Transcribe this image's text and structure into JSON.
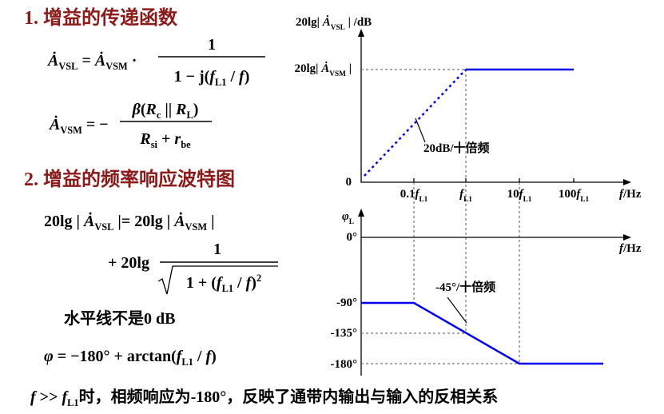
{
  "heading_1": [
    {
      "t": "1.  增益的传递函数"
    }
  ],
  "f1_lhs": [
    {
      "t": "Ȧ",
      "i": true
    },
    {
      "sub": "VSL"
    },
    {
      "t": " = "
    },
    {
      "t": "Ȧ",
      "i": true
    },
    {
      "sub": "VSM"
    },
    {
      "t": " ·"
    }
  ],
  "f1_num": [
    {
      "t": "1"
    }
  ],
  "f1_den": [
    {
      "t": "1 − j("
    },
    {
      "t": "f",
      "i": true
    },
    {
      "sub": "L1"
    },
    {
      "t": " / "
    },
    {
      "t": "f",
      "i": true
    },
    {
      "t": ")"
    }
  ],
  "f2_lhs": [
    {
      "t": "Ȧ",
      "i": true
    },
    {
      "sub": "VSM"
    },
    {
      "t": " = −"
    }
  ],
  "f2_num": [
    {
      "t": "β",
      "i": true
    },
    {
      "t": "("
    },
    {
      "t": "R",
      "i": true
    },
    {
      "sub": "c"
    },
    {
      "t": " || "
    },
    {
      "t": "R",
      "i": true
    },
    {
      "sub": "L"
    },
    {
      "t": ")"
    }
  ],
  "f2_den": [
    {
      "t": "R",
      "i": true
    },
    {
      "sub": "si"
    },
    {
      "t": " + "
    },
    {
      "t": "r",
      "i": true
    },
    {
      "sub": "be"
    }
  ],
  "heading_2": [
    {
      "t": "2.  增益的频率响应波特图"
    }
  ],
  "f3": [
    {
      "t": "20lg | "
    },
    {
      "t": "Ȧ",
      "i": true
    },
    {
      "sub": "VSL"
    },
    {
      "t": " |= 20lg | "
    },
    {
      "t": "Ȧ",
      "i": true
    },
    {
      "sub": "VSM"
    },
    {
      "t": " |"
    }
  ],
  "f4_lhs": [
    {
      "t": "+ 20lg"
    }
  ],
  "f4_num": [
    {
      "t": "1"
    }
  ],
  "f4_den": [
    {
      "t": "1 + ("
    },
    {
      "t": "f",
      "i": true
    },
    {
      "sub": "L1"
    },
    {
      "t": " / "
    },
    {
      "t": "f",
      "i": true
    },
    {
      "t": ")"
    },
    {
      "sup": "2"
    }
  ],
  "note": [
    {
      "t": "水平线不是0 dB"
    }
  ],
  "f5": [
    {
      "t": "φ",
      "i": true
    },
    {
      "t": " = −180° + arctan("
    },
    {
      "t": "f",
      "i": true
    },
    {
      "sub": "L1"
    },
    {
      "t": " / "
    },
    {
      "t": "f",
      "i": true
    },
    {
      "t": ")"
    }
  ],
  "conclusion": [
    {
      "t": "f",
      "i": true
    },
    {
      "t": " >> "
    },
    {
      "t": "f",
      "i": true
    },
    {
      "sub": "L1"
    },
    {
      "t": "时，相频响应为-180°，反映了通带内输出与输入的反相关系"
    }
  ],
  "gain_axis_title": [
    {
      "t": "20lg| "
    },
    {
      "t": "Ȧ",
      "i": true
    },
    {
      "sub": "VSL"
    },
    {
      "t": " | /dB"
    }
  ],
  "gain_level": [
    {
      "t": "20lg| "
    },
    {
      "t": "Ȧ",
      "i": true
    },
    {
      "sub": "VSM"
    },
    {
      "t": " |"
    }
  ],
  "gain_zero": [
    {
      "t": "0"
    }
  ],
  "gain_slope": [
    {
      "t": "20dB/十倍频"
    }
  ],
  "freq_ticks": [
    [
      {
        "t": "0.1"
      },
      {
        "t": "f",
        "i": true
      },
      {
        "sub": "L1"
      }
    ],
    [
      {
        "t": "f",
        "i": true
      },
      {
        "sub": "L1"
      }
    ],
    [
      {
        "t": "10"
      },
      {
        "t": "f",
        "i": true
      },
      {
        "sub": "L1"
      }
    ],
    [
      {
        "t": "100"
      },
      {
        "t": "f",
        "i": true
      },
      {
        "sub": "L1"
      }
    ]
  ],
  "gain_x_title": [
    {
      "t": "f",
      "i": true
    },
    {
      "t": "/Hz"
    }
  ],
  "phase_axis_title": [
    {
      "t": "φ",
      "i": true
    },
    {
      "sub": "L"
    }
  ],
  "phase_ticks": [
    [
      {
        "t": "0°"
      }
    ],
    [
      {
        "t": "-90°"
      }
    ],
    [
      {
        "t": "-135°"
      }
    ],
    [
      {
        "t": "-180°"
      }
    ]
  ],
  "phase_x_title": [
    {
      "t": "f",
      "i": true
    },
    {
      "t": "/Hz"
    }
  ],
  "phase_slope": [
    {
      "t": "-45°/十倍频"
    }
  ]
}
